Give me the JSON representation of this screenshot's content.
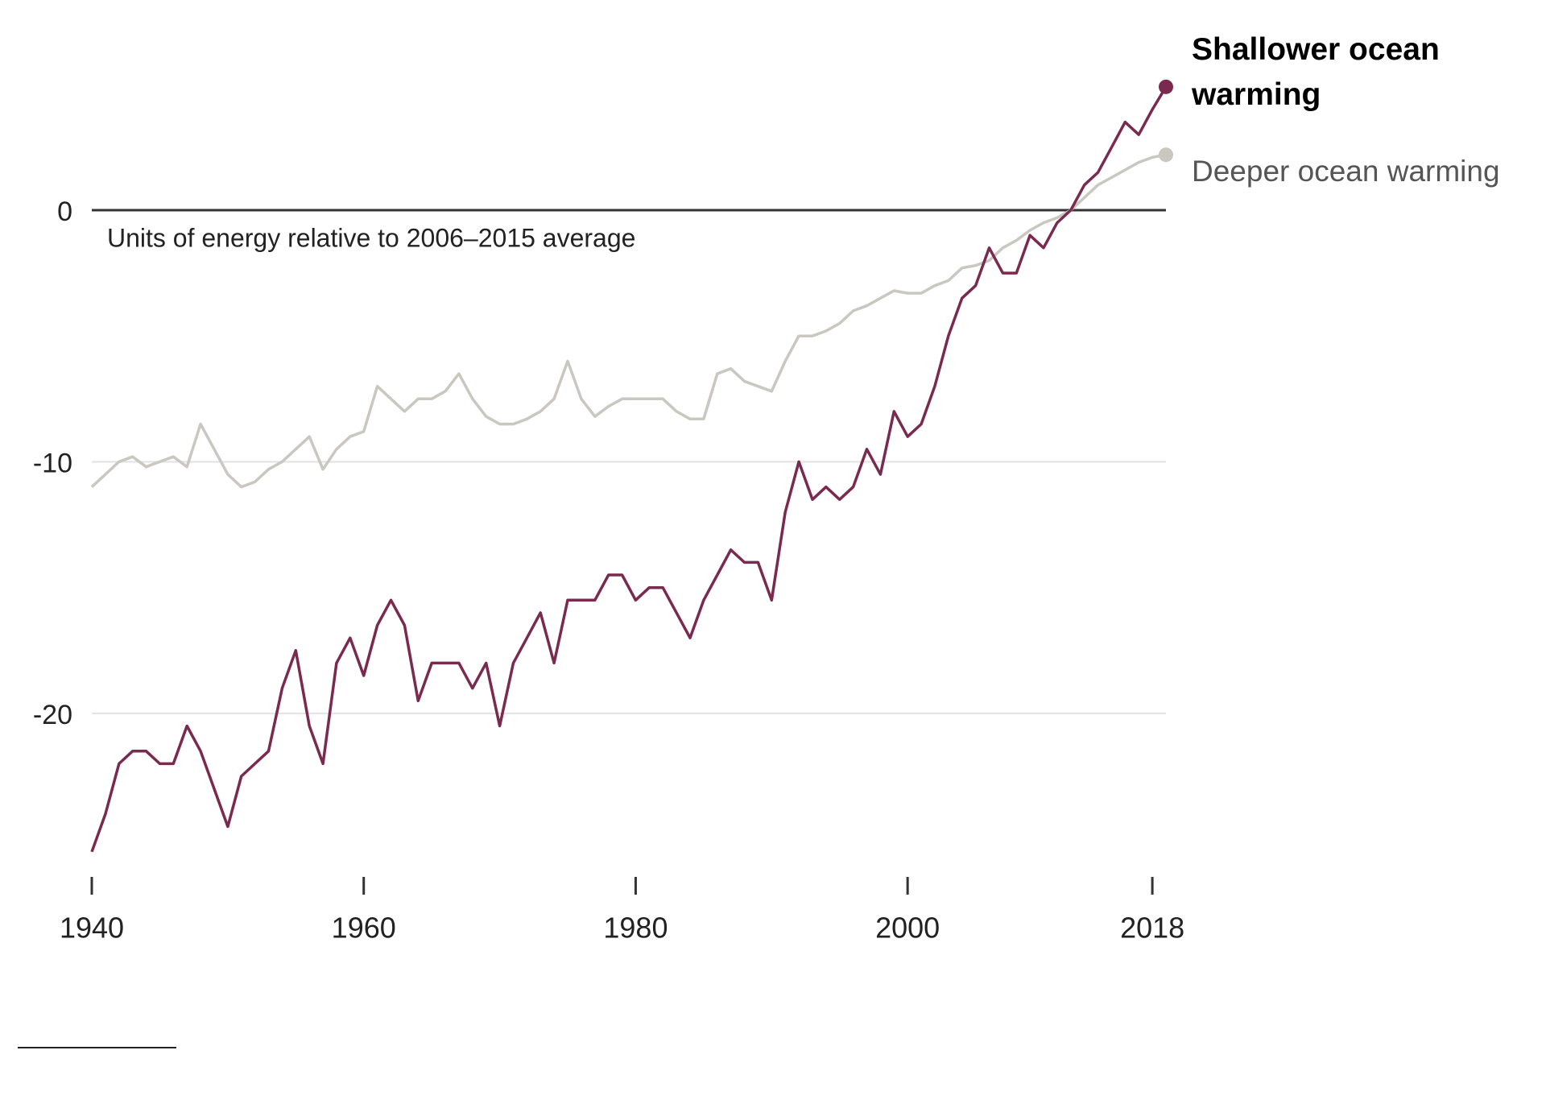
{
  "chart_data": {
    "type": "line",
    "annotation": "Units of energy relative to  2006–2015 average",
    "x": [
      1940,
      1941,
      1942,
      1943,
      1944,
      1945,
      1946,
      1947,
      1948,
      1949,
      1950,
      1951,
      1952,
      1953,
      1954,
      1955,
      1956,
      1957,
      1958,
      1959,
      1960,
      1961,
      1962,
      1963,
      1964,
      1965,
      1966,
      1967,
      1968,
      1969,
      1970,
      1971,
      1972,
      1973,
      1974,
      1975,
      1976,
      1977,
      1978,
      1979,
      1980,
      1981,
      1982,
      1983,
      1984,
      1985,
      1986,
      1987,
      1988,
      1989,
      1990,
      1991,
      1992,
      1993,
      1994,
      1995,
      1996,
      1997,
      1998,
      1999,
      2000,
      2001,
      2002,
      2003,
      2004,
      2005,
      2006,
      2007,
      2008,
      2009,
      2010,
      2011,
      2012,
      2013,
      2014,
      2015,
      2016,
      2017,
      2018,
      2019
    ],
    "series": [
      {
        "name": "Shallower ocean warming",
        "color": "#7b2a4f",
        "values": [
          -25.5,
          -24,
          -22,
          -21.5,
          -21.5,
          -22,
          -22,
          -20.5,
          -21.5,
          -23,
          -24.5,
          -22.5,
          -22,
          -21.5,
          -19,
          -17.5,
          -20.5,
          -22,
          -18,
          -17,
          -18.5,
          -16.5,
          -15.5,
          -16.5,
          -19.5,
          -18,
          -18,
          -18,
          -19,
          -18,
          -20.5,
          -18,
          -17,
          -16,
          -18,
          -15.5,
          -15.5,
          -15.5,
          -14.5,
          -14.5,
          -15.5,
          -15,
          -15,
          -16,
          -17,
          -15.5,
          -14.5,
          -13.5,
          -14,
          -14,
          -15.5,
          -12,
          -10,
          -11.5,
          -11,
          -11.5,
          -11,
          -9.5,
          -10.5,
          -8,
          -9,
          -8.5,
          -7,
          -5,
          -3.5,
          -3,
          -1.5,
          -2.5,
          -2.5,
          -1,
          -1.5,
          -0.5,
          0,
          1,
          1.5,
          2.5,
          3.5,
          3,
          4,
          4.9
        ]
      },
      {
        "name": "Deeper ocean warming",
        "color": "#c9c7c0",
        "values": [
          -11,
          -10.5,
          -10,
          -9.8,
          -10.2,
          -10,
          -9.8,
          -10.2,
          -8.5,
          -9.5,
          -10.5,
          -11,
          -10.8,
          -10.3,
          -10,
          -9.5,
          -9,
          -10.3,
          -9.5,
          -9,
          -8.8,
          -7,
          -7.5,
          -8,
          -7.5,
          -7.5,
          -7.2,
          -6.5,
          -7.5,
          -8.2,
          -8.5,
          -8.5,
          -8.3,
          -8,
          -7.5,
          -6,
          -7.5,
          -8.2,
          -7.8,
          -7.5,
          -7.5,
          -7.5,
          -7.5,
          -8,
          -8.3,
          -8.3,
          -6.5,
          -6.3,
          -6.8,
          -7,
          -7.2,
          -6,
          -5,
          -5,
          -4.8,
          -4.5,
          -4,
          -3.8,
          -3.5,
          -3.2,
          -3.3,
          -3.3,
          -3,
          -2.8,
          -2.3,
          -2.2,
          -2,
          -1.5,
          -1.2,
          -0.8,
          -0.5,
          -0.3,
          0,
          0.5,
          1,
          1.3,
          1.6,
          1.9,
          2.1,
          2.2
        ]
      }
    ],
    "xlim": [
      1940,
      2019
    ],
    "xticks": [
      1940,
      1960,
      1980,
      2000,
      2018
    ],
    "ylim": [
      -26.5,
      6
    ],
    "yticks": [
      -20,
      -10,
      0
    ],
    "grid": true
  }
}
